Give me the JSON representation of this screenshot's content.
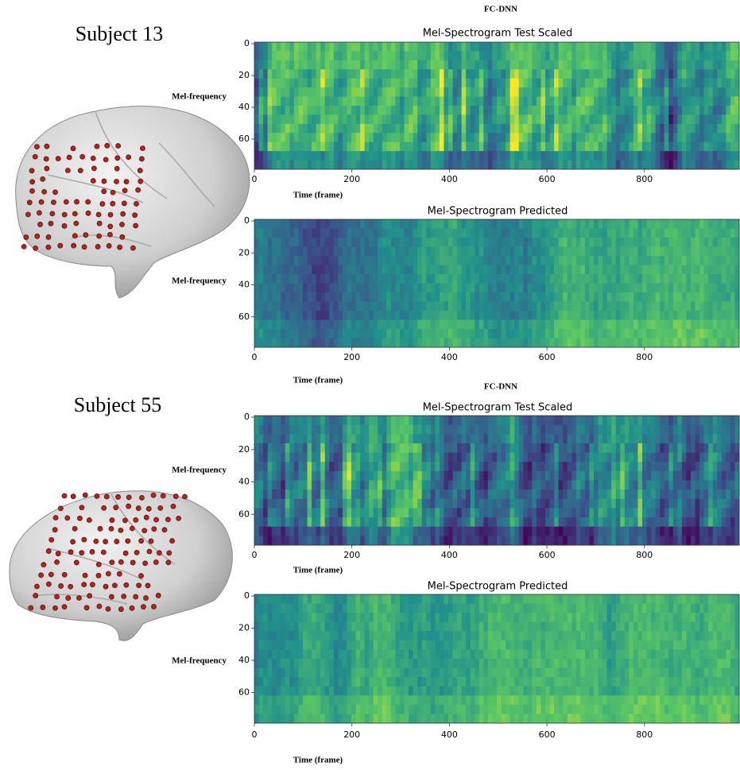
{
  "groups": [
    {
      "model": "FC-DNN",
      "subject": "Subject 13",
      "panels": [
        {
          "title": "Mel-Spectrogram Test Scaled",
          "y_label": "Mel-frequency",
          "x_label": "Time (frame)",
          "y_ticks": [
            0,
            20,
            40,
            60
          ],
          "x_ticks": [
            0,
            200,
            400,
            600,
            800
          ]
        },
        {
          "title": "Mel-Spectrogram Predicted",
          "y_label": "Mel-frequency",
          "x_label": "Time (frame)",
          "y_ticks": [
            0,
            20,
            40,
            60
          ],
          "x_ticks": [
            0,
            200,
            400,
            600,
            800
          ]
        }
      ]
    },
    {
      "model": "FC-DNN",
      "subject": "Subject 55",
      "panels": [
        {
          "title": "Mel-Spectrogram Test Scaled",
          "y_label": "Mel-frequency",
          "x_label": "Time (frame)",
          "y_ticks": [
            0,
            20,
            40,
            60
          ],
          "x_ticks": [
            0,
            200,
            400,
            600,
            800
          ]
        },
        {
          "title": "Mel-Spectrogram Predicted",
          "y_label": "Mel-frequency",
          "x_label": "Time (frame)",
          "y_ticks": [
            0,
            20,
            40,
            60
          ],
          "x_ticks": [
            0,
            200,
            400,
            600,
            800
          ]
        }
      ]
    }
  ]
}
